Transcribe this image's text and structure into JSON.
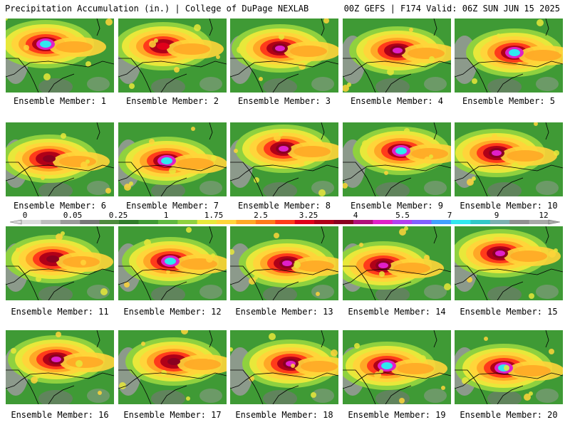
{
  "header": {
    "left": "Precipitation Accumulation (in.) | College of DuPage NEXLAB",
    "right": "00Z GEFS | F174 Valid: 06Z SUN JUN 15 2025"
  },
  "members": [
    {
      "label": "Ensemble Member: 1",
      "core": "cyan"
    },
    {
      "label": "Ensemble Member: 2",
      "core": "red"
    },
    {
      "label": "Ensemble Member: 3",
      "core": "magenta"
    },
    {
      "label": "Ensemble Member: 4",
      "core": "magenta"
    },
    {
      "label": "Ensemble Member: 5",
      "core": "cyan"
    },
    {
      "label": "Ensemble Member: 6",
      "core": "maroon"
    },
    {
      "label": "Ensemble Member: 7",
      "core": "cyan"
    },
    {
      "label": "Ensemble Member: 8",
      "core": "magenta"
    },
    {
      "label": "Ensemble Member: 9",
      "core": "cyan"
    },
    {
      "label": "Ensemble Member: 10",
      "core": "magenta"
    },
    {
      "label": "Ensemble Member: 11",
      "core": "maroon"
    },
    {
      "label": "Ensemble Member: 12",
      "core": "cyan"
    },
    {
      "label": "Ensemble Member: 13",
      "core": "magenta"
    },
    {
      "label": "Ensemble Member: 14",
      "core": "magenta"
    },
    {
      "label": "Ensemble Member: 15",
      "core": "magenta"
    },
    {
      "label": "Ensemble Member: 16",
      "core": "magenta"
    },
    {
      "label": "Ensemble Member: 17",
      "core": "maroon"
    },
    {
      "label": "Ensemble Member: 18",
      "core": "magenta"
    },
    {
      "label": "Ensemble Member: 19",
      "core": "cyan"
    },
    {
      "label": "Ensemble Member: 20",
      "core": "cyan"
    }
  ],
  "colorbar": {
    "tick_labels": [
      "0",
      "0.05",
      "0.25",
      "1",
      "1.75",
      "2.5",
      "3.25",
      "4",
      "5.5",
      "7",
      "9",
      "12"
    ],
    "colors": [
      "#dcdcdc",
      "#bdbdbd",
      "#9a9a9a",
      "#777777",
      "#4d8a3c",
      "#2f7d2a",
      "#3f9a35",
      "#5fb840",
      "#8fd13f",
      "#e8e83a",
      "#ffd53a",
      "#ffa826",
      "#ff7a1a",
      "#ff3b1a",
      "#e0001a",
      "#b00018",
      "#8a0020",
      "#b0107a",
      "#e020c8",
      "#b040f0",
      "#8060ff",
      "#40a0ff",
      "#30e8f0",
      "#30c8c8",
      "#7ab0b0",
      "#909090",
      "#a8a8a8"
    ]
  }
}
